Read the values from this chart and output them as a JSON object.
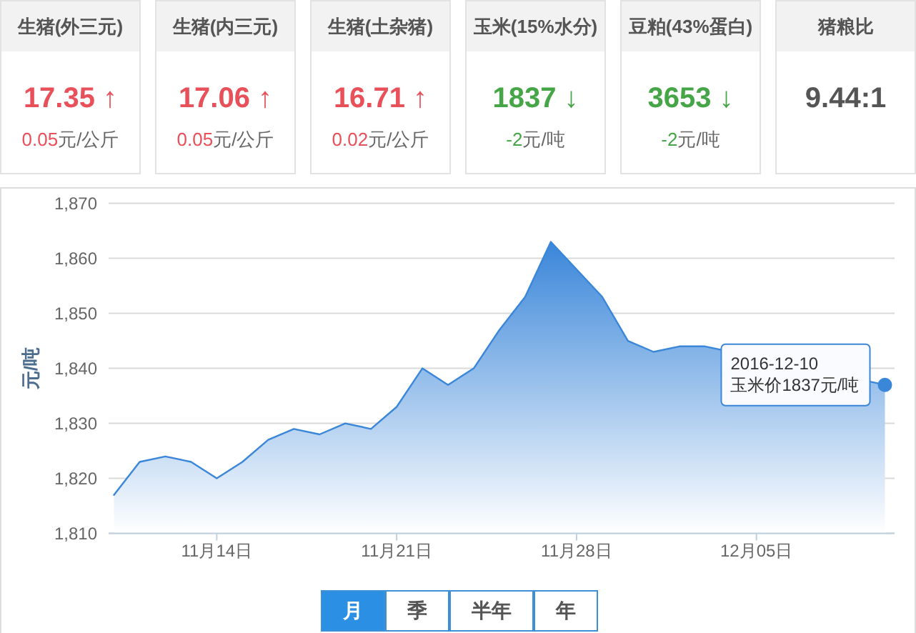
{
  "chart_data": [
    {
      "type": "other",
      "title": "生猪(外三元)",
      "color": "#e8505a",
      "annotations": [
        "17.35 ↑",
        "0.05元/公斤"
      ]
    },
    {
      "type": "other",
      "title": "生猪(内三元)",
      "color": "#e8505a",
      "annotations": [
        "17.06 ↑",
        "0.05元/公斤"
      ]
    },
    {
      "type": "other",
      "title": "生猪(土杂猪)",
      "color": "#e8505a",
      "annotations": [
        "16.71 ↑",
        "0.02元/公斤"
      ]
    },
    {
      "type": "other",
      "title": "玉米(15%水分)",
      "color": "#46a546",
      "annotations": [
        "1837 ↓",
        "-2元/吨"
      ]
    },
    {
      "type": "other",
      "title": "豆粕(43%蛋白)",
      "color": "#46a546",
      "annotations": [
        "3653 ↓",
        "-2元/吨"
      ]
    },
    {
      "type": "other",
      "title": "猪粮比",
      "color": "#555555",
      "annotations": [
        "9.44:1"
      ]
    },
    {
      "type": "area",
      "color": "#3a86d9",
      "ylabel": "元/吨",
      "grid": "y",
      "x": [
        "2016-11-10",
        "2016-11-11",
        "2016-11-12",
        "2016-11-13",
        "2016-11-14",
        "2016-11-15",
        "2016-11-16",
        "2016-11-17",
        "2016-11-18",
        "2016-11-19",
        "2016-11-20",
        "2016-11-21",
        "2016-11-22",
        "2016-11-23",
        "2016-11-24",
        "2016-11-25",
        "2016-11-26",
        "2016-11-27",
        "2016-11-28",
        "2016-11-29",
        "2016-11-30",
        "2016-12-01",
        "2016-12-02",
        "2016-12-03",
        "2016-12-10"
      ],
      "values": [
        1817,
        1823,
        1824,
        1823,
        1820,
        1823,
        1827,
        1829,
        1828,
        1830,
        1829,
        1833,
        1840,
        1837,
        1840,
        1847,
        1853,
        1863,
        1858,
        1853,
        1845,
        1843,
        1844,
        1844,
        1837
      ],
      "xlim": [
        "2016-11-09T19:00",
        "2016-12-10T09:00"
      ],
      "ylim": [
        1810,
        1870
      ],
      "xticks": [
        {
          "value": "2016-11-14",
          "label": "11月14日"
        },
        {
          "value": "2016-11-21",
          "label": "11月21日"
        },
        {
          "value": "2016-11-28",
          "label": "11月28日"
        },
        {
          "value": "2016-12-05",
          "label": "12月05日"
        }
      ],
      "yticks": [
        {
          "value": 1810,
          "label": "1,810"
        },
        {
          "value": 1820,
          "label": "1,820"
        },
        {
          "value": 1830,
          "label": "1,830"
        },
        {
          "value": 1840,
          "label": "1,840"
        },
        {
          "value": 1850,
          "label": "1,850"
        },
        {
          "value": 1860,
          "label": "1,860"
        },
        {
          "value": 1870,
          "label": "1,870"
        }
      ],
      "annotations": [
        {
          "text": "2016-12-10\n玉米价1837元/吨",
          "x": "2016-12-10",
          "y": 1837
        }
      ]
    },
    {
      "type": "other",
      "annotations": [
        "月",
        "季",
        "半年",
        "年"
      ]
    }
  ]
}
